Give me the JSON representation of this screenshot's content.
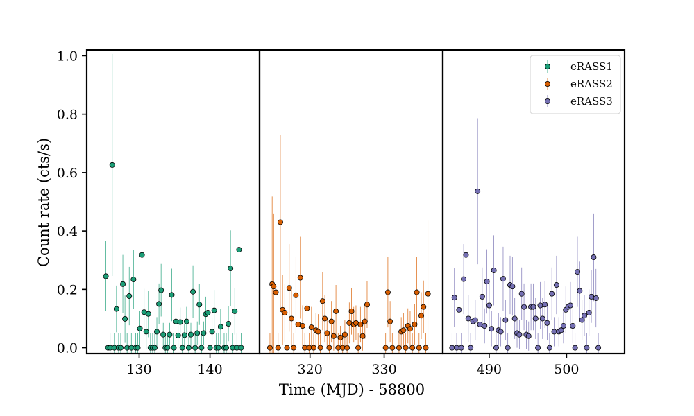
{
  "chart_data": {
    "type": "scatter",
    "xlabel": "Time (MJD) - 58800",
    "ylabel": "Count rate (cts/s)",
    "ylim": [
      -0.02,
      1.02
    ],
    "y_ticks": [
      "0.0",
      "0.2",
      "0.4",
      "0.6",
      "0.8",
      "1.0"
    ],
    "legend_position": "top-right",
    "panels": [
      {
        "series": {
          "name": "eRASS1",
          "color": "#1b9e77",
          "points": [
            [
              125.3,
              0.245,
              0.12
            ],
            [
              125.6,
              0,
              0.05
            ],
            [
              125.9,
              0,
              0.05
            ],
            [
              126.2,
              0.626,
              0.38
            ],
            [
              126.5,
              0,
              0.05
            ],
            [
              126.8,
              0.133,
              0.08
            ],
            [
              127.1,
              0,
              0.05
            ],
            [
              127.4,
              0,
              0.05
            ],
            [
              127.7,
              0.218,
              0.1
            ],
            [
              128.0,
              0.099,
              0.08
            ],
            [
              128.3,
              0,
              0.05
            ],
            [
              128.6,
              0.177,
              0.1
            ],
            [
              128.9,
              0,
              0.05
            ],
            [
              129.2,
              0.234,
              0.1
            ],
            [
              129.5,
              0,
              0.05
            ],
            [
              129.8,
              0,
              0.05
            ],
            [
              130.1,
              0.066,
              0.06
            ],
            [
              130.4,
              0.318,
              0.17
            ],
            [
              130.7,
              0.122,
              0.08
            ],
            [
              131.0,
              0.055,
              0.06
            ],
            [
              131.3,
              0.116,
              0.08
            ],
            [
              131.6,
              0,
              0.05
            ],
            [
              131.9,
              0,
              0.05
            ],
            [
              132.2,
              0,
              0.05
            ],
            [
              132.5,
              0.055,
              0.05
            ],
            [
              132.8,
              0.15,
              0.07
            ],
            [
              133.1,
              0.197,
              0.09
            ],
            [
              133.4,
              0.045,
              0.04
            ],
            [
              133.7,
              0,
              0.05
            ],
            [
              134.0,
              0,
              0.05
            ],
            [
              134.3,
              0.045,
              0.04
            ],
            [
              134.6,
              0.181,
              0.09
            ],
            [
              134.9,
              0,
              0.05
            ],
            [
              135.2,
              0.09,
              0.05
            ],
            [
              135.5,
              0.042,
              0.04
            ],
            [
              135.8,
              0.088,
              0.05
            ],
            [
              136.1,
              0,
              0.05
            ],
            [
              136.4,
              0.043,
              0.04
            ],
            [
              136.7,
              0.09,
              0.05
            ],
            [
              137.0,
              0,
              0.05
            ],
            [
              137.3,
              0.045,
              0.04
            ],
            [
              137.6,
              0.192,
              0.09
            ],
            [
              137.9,
              0,
              0.05
            ],
            [
              138.2,
              0.05,
              0.04
            ],
            [
              138.5,
              0.148,
              0.07
            ],
            [
              138.8,
              0,
              0.05
            ],
            [
              139.1,
              0.05,
              0.04
            ],
            [
              139.4,
              0.115,
              0.06
            ],
            [
              139.7,
              0.12,
              0.06
            ],
            [
              140.0,
              0,
              0.05
            ],
            [
              140.3,
              0.055,
              0.05
            ],
            [
              140.6,
              0.128,
              0.07
            ],
            [
              140.9,
              0,
              0.05
            ],
            [
              141.2,
              0,
              0.05
            ],
            [
              141.5,
              0.072,
              0.06
            ],
            [
              142.0,
              0,
              0.05
            ],
            [
              142.3,
              0,
              0.05
            ],
            [
              142.6,
              0.082,
              0.06
            ],
            [
              142.9,
              0.272,
              0.13
            ],
            [
              143.2,
              0,
              0.05
            ],
            [
              143.5,
              0.125,
              0.08
            ],
            [
              143.8,
              0,
              0.05
            ],
            [
              144.1,
              0.336,
              0.3
            ],
            [
              144.4,
              0,
              0.05
            ]
          ]
        },
        "xlim": [
          122.6,
          147.0
        ],
        "x_ticks": [
          130,
          140
        ]
      },
      {
        "series": {
          "name": "eRASS2",
          "color": "#d95f02",
          "points": [
            [
              314.6,
              0,
              0.05
            ],
            [
              314.9,
              0.218,
              0.3
            ],
            [
              315.1,
              0.21,
              0.25
            ],
            [
              315.4,
              0.19,
              0.22
            ],
            [
              315.7,
              0,
              0.05
            ],
            [
              316.0,
              0.43,
              0.3
            ],
            [
              316.3,
              0.13,
              0.12
            ],
            [
              316.6,
              0.12,
              0.1
            ],
            [
              316.9,
              0,
              0.05
            ],
            [
              317.2,
              0.205,
              0.15
            ],
            [
              317.5,
              0.1,
              0.1
            ],
            [
              317.8,
              0,
              0.05
            ],
            [
              318.1,
              0.18,
              0.13
            ],
            [
              318.4,
              0.08,
              0.08
            ],
            [
              318.7,
              0.24,
              0.14
            ],
            [
              319.0,
              0.075,
              0.07
            ],
            [
              319.3,
              0,
              0.05
            ],
            [
              319.6,
              0.135,
              0.1
            ],
            [
              319.9,
              0,
              0.05
            ],
            [
              320.2,
              0.07,
              0.07
            ],
            [
              320.5,
              0,
              0.05
            ],
            [
              320.8,
              0.06,
              0.06
            ],
            [
              321.1,
              0.055,
              0.06
            ],
            [
              321.4,
              0,
              0.05
            ],
            [
              321.7,
              0.16,
              0.1
            ],
            [
              322.0,
              0.1,
              0.08
            ],
            [
              322.3,
              0.05,
              0.05
            ],
            [
              322.6,
              0,
              0.05
            ],
            [
              322.9,
              0.09,
              0.07
            ],
            [
              323.2,
              0.04,
              0.05
            ],
            [
              323.5,
              0.125,
              0.09
            ],
            [
              323.8,
              0,
              0.05
            ],
            [
              324.1,
              0.035,
              0.04
            ],
            [
              324.4,
              0,
              0.05
            ],
            [
              324.7,
              0.045,
              0.05
            ],
            [
              325.0,
              0,
              0.05
            ],
            [
              325.3,
              0.085,
              0.07
            ],
            [
              325.6,
              0.125,
              0.08
            ],
            [
              325.9,
              0.08,
              0.06
            ],
            [
              326.2,
              0.085,
              0.06
            ],
            [
              326.5,
              0,
              0.05
            ],
            [
              326.8,
              0.08,
              0.06
            ],
            [
              327.1,
              0.04,
              0.05
            ],
            [
              327.4,
              0.09,
              0.06
            ],
            [
              327.7,
              0.148,
              0.08
            ],
            [
              330.2,
              0,
              0.05
            ],
            [
              330.5,
              0.19,
              0.12
            ],
            [
              330.8,
              0.09,
              0.07
            ],
            [
              331.1,
              0,
              0.05
            ],
            [
              332.0,
              0,
              0.05
            ],
            [
              332.3,
              0.055,
              0.05
            ],
            [
              332.6,
              0.06,
              0.06
            ],
            [
              332.9,
              0,
              0.05
            ],
            [
              333.2,
              0.075,
              0.06
            ],
            [
              333.5,
              0.065,
              0.06
            ],
            [
              333.8,
              0,
              0.05
            ],
            [
              334.1,
              0.08,
              0.07
            ],
            [
              334.4,
              0.19,
              0.12
            ],
            [
              334.7,
              0,
              0.05
            ],
            [
              335.0,
              0.11,
              0.08
            ],
            [
              335.3,
              0.14,
              0.09
            ],
            [
              335.6,
              0,
              0.05
            ],
            [
              335.9,
              0.185,
              0.25
            ]
          ]
        },
        "xlim": [
          313.2,
          337.9
        ],
        "x_ticks": [
          320,
          330
        ]
      },
      {
        "series": {
          "name": "eRASS3",
          "color": "#7570b3",
          "points": [
            [
              485.2,
              0,
              0.05
            ],
            [
              485.5,
              0.172,
              0.1
            ],
            [
              485.8,
              0,
              0.05
            ],
            [
              486.1,
              0.13,
              0.08
            ],
            [
              486.4,
              0,
              0.05
            ],
            [
              486.7,
              0.235,
              0.12
            ],
            [
              487.0,
              0.318,
              0.15
            ],
            [
              487.3,
              0.1,
              0.08
            ],
            [
              487.6,
              0,
              0.05
            ],
            [
              487.9,
              0.09,
              0.06
            ],
            [
              488.2,
              0.095,
              0.07
            ],
            [
              488.5,
              0.536,
              0.25
            ],
            [
              488.8,
              0.08,
              0.06
            ],
            [
              489.1,
              0.175,
              0.1
            ],
            [
              489.4,
              0.075,
              0.06
            ],
            [
              489.7,
              0.227,
              0.11
            ],
            [
              490.0,
              0.145,
              0.09
            ],
            [
              490.3,
              0.065,
              0.06
            ],
            [
              490.6,
              0.265,
              0.12
            ],
            [
              490.9,
              0,
              0.05
            ],
            [
              491.2,
              0.06,
              0.06
            ],
            [
              491.5,
              0.055,
              0.05
            ],
            [
              491.8,
              0.236,
              0.11
            ],
            [
              492.1,
              0.095,
              0.07
            ],
            [
              492.4,
              0,
              0.05
            ],
            [
              492.7,
              0.215,
              0.1
            ],
            [
              493.0,
              0.21,
              0.1
            ],
            [
              493.3,
              0.1,
              0.07
            ],
            [
              493.6,
              0.05,
              0.05
            ],
            [
              493.9,
              0.045,
              0.05
            ],
            [
              494.2,
              0.185,
              0.09
            ],
            [
              494.5,
              0.14,
              0.08
            ],
            [
              494.8,
              0.045,
              0.05
            ],
            [
              495.1,
              0.04,
              0.05
            ],
            [
              495.4,
              0.14,
              0.08
            ],
            [
              495.7,
              0.14,
              0.08
            ],
            [
              496.0,
              0.1,
              0.07
            ],
            [
              496.3,
              0,
              0.05
            ],
            [
              496.6,
              0.145,
              0.08
            ],
            [
              496.9,
              0.1,
              0.07
            ],
            [
              497.2,
              0.148,
              0.08
            ],
            [
              497.5,
              0.085,
              0.06
            ],
            [
              497.8,
              0,
              0.05
            ],
            [
              498.1,
              0.185,
              0.09
            ],
            [
              498.4,
              0.055,
              0.05
            ],
            [
              498.7,
              0.215,
              0.1
            ],
            [
              499.0,
              0.055,
              0.05
            ],
            [
              499.3,
              0.06,
              0.06
            ],
            [
              499.6,
              0.075,
              0.06
            ],
            [
              499.9,
              0.13,
              0.08
            ],
            [
              500.2,
              0.14,
              0.08
            ],
            [
              500.5,
              0.145,
              0.08
            ],
            [
              500.8,
              0.075,
              0.06
            ],
            [
              501.1,
              0,
              0.05
            ],
            [
              501.4,
              0.26,
              0.12
            ],
            [
              501.7,
              0.195,
              0.1
            ],
            [
              502.0,
              0.095,
              0.07
            ],
            [
              502.3,
              0.11,
              0.07
            ],
            [
              502.6,
              0,
              0.05
            ],
            [
              502.9,
              0.12,
              0.08
            ],
            [
              503.2,
              0.175,
              0.09
            ],
            [
              503.5,
              0.31,
              0.15
            ],
            [
              503.8,
              0.17,
              0.1
            ],
            [
              504.1,
              0,
              0.05
            ]
          ]
        },
        "xlim": [
          484.0,
          507.5
        ],
        "x_ticks": [
          490,
          500
        ]
      }
    ]
  }
}
